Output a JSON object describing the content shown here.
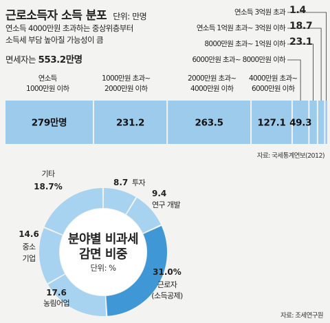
{
  "header": {
    "title": "근로소득자 소득 분포",
    "unit": "단위: 만명",
    "subtitle_line1": "연소득 4000만원 초과하는 중상위층부터",
    "subtitle_line2": "소득세 부담 높아질 가능성이 큼",
    "exempt_label": "면세자는",
    "exempt_value": "553.2만명"
  },
  "bar_source": "자료: 국세통계연보(2012)",
  "donut_source": "자료: 조세연구원",
  "colors": {
    "bar_fill": "#9ccbec",
    "donut_light": "#a7d3f1",
    "donut_dark": "#3f97d6",
    "leader": "#333333"
  },
  "chart_data": [
    {
      "type": "bar",
      "stacked": true,
      "orientation": "horizontal",
      "title": "근로소득자 소득 분포",
      "unit": "단위: 만명",
      "segments": [
        {
          "label_line1": "연소득",
          "label_line2": "1000만원 이하",
          "value": 279,
          "display": "279만명"
        },
        {
          "label_line1": "1000만원 초과~",
          "label_line2": "2000만원 이하",
          "value": 231.2,
          "display": "231.2"
        },
        {
          "label_line1": "2000만원 초과~",
          "label_line2": "4000만원 이하",
          "value": 263.5,
          "display": "263.5"
        },
        {
          "label_line1": "4000만원 초과~",
          "label_line2": "6000만원 이하",
          "value": 127.1,
          "display": "127.1"
        },
        {
          "label": "6000만원 초과~ 8000만원 이하",
          "value": 49.3,
          "display": "49.3"
        },
        {
          "label": "8000만원 초과~ 1억원 이하",
          "value": 23.1,
          "display": "23.1"
        },
        {
          "label": "연소득 1억원 초과~ 3억원 이하",
          "value": 18.7,
          "display": "18.7"
        },
        {
          "label": "연소득 3억원 초과",
          "value": 1.4,
          "display": "1.4"
        }
      ]
    },
    {
      "type": "pie",
      "donut": true,
      "title": "분야별 비과세 감면 비중",
      "unit": "단위: %",
      "slices": [
        {
          "label": "투자",
          "value": 8.7,
          "display": "8.7",
          "highlight": false
        },
        {
          "label": "연구 개발",
          "value": 9.4,
          "display": "9.4",
          "highlight": false
        },
        {
          "label": "근로자 (소득공제)",
          "label_line1": "근로자",
          "label_line2": "(소득공제)",
          "value": 31.0,
          "display": "31.0%",
          "highlight": true
        },
        {
          "label": "농림어업",
          "value": 17.6,
          "display": "17.6",
          "highlight": false
        },
        {
          "label": "중소 기업",
          "label_line1": "중소",
          "label_line2": "기업",
          "value": 14.6,
          "display": "14.6",
          "highlight": false
        },
        {
          "label": "기타",
          "value": 18.7,
          "display": "18.7%",
          "highlight": false
        }
      ]
    }
  ]
}
